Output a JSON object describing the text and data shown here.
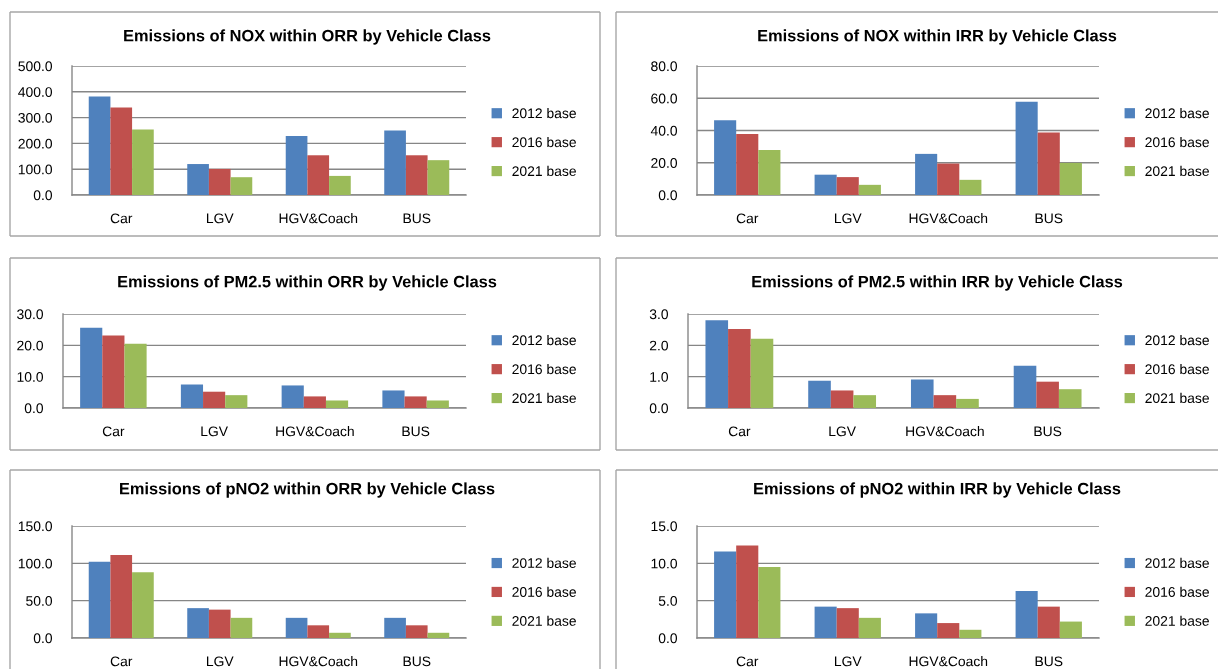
{
  "chart_data": [
    {
      "type": "bar",
      "title": "Emissions of NOX within ORR by Vehicle Class",
      "categories": [
        "Car",
        "LGV",
        "HGV&Coach",
        "BUS"
      ],
      "series": [
        {
          "name": "2012 base",
          "color": "#4f81bd",
          "values": [
            382,
            120,
            229,
            250
          ]
        },
        {
          "name": "2016 base",
          "color": "#c0504d",
          "values": [
            339,
            101,
            154,
            154
          ]
        },
        {
          "name": "2021 base",
          "color": "#9bbb59",
          "values": [
            254,
            69,
            74,
            135
          ]
        }
      ],
      "ylim": [
        0,
        500
      ],
      "yticks": [
        {
          "value": 0,
          "label": "0.0"
        },
        {
          "value": 100,
          "label": "100.0"
        },
        {
          "value": 200,
          "label": "200.0"
        },
        {
          "value": 300,
          "label": "300.0"
        },
        {
          "value": 400,
          "label": "400.0"
        },
        {
          "value": 500,
          "label": "500.0"
        }
      ],
      "grid": "y",
      "legend": "right"
    },
    {
      "type": "bar",
      "title": "Emissions of NOX within IRR by Vehicle Class",
      "categories": [
        "Car",
        "LGV",
        "HGV&Coach",
        "BUS"
      ],
      "series": [
        {
          "name": "2012 base",
          "color": "#4f81bd",
          "values": [
            46.3,
            12.6,
            25.5,
            57.8
          ]
        },
        {
          "name": "2016 base",
          "color": "#c0504d",
          "values": [
            37.9,
            11.1,
            19.5,
            38.7
          ]
        },
        {
          "name": "2021 base",
          "color": "#9bbb59",
          "values": [
            27.9,
            6.3,
            9.4,
            19.9
          ]
        }
      ],
      "ylim": [
        0,
        80
      ],
      "yticks": [
        {
          "value": 0,
          "label": "0.0"
        },
        {
          "value": 20,
          "label": "20.0"
        },
        {
          "value": 40,
          "label": "40.0"
        },
        {
          "value": 60,
          "label": "60.0"
        },
        {
          "value": 80,
          "label": "80.0"
        }
      ],
      "grid": "y",
      "legend": "right"
    },
    {
      "type": "bar",
      "title": "Emissions of PM2.5 within ORR by Vehicle Class",
      "categories": [
        "Car",
        "LGV",
        "HGV&Coach",
        "BUS"
      ],
      "series": [
        {
          "name": "2012 base",
          "color": "#4f81bd",
          "values": [
            25.6,
            7.5,
            7.2,
            5.6
          ]
        },
        {
          "name": "2016 base",
          "color": "#c0504d",
          "values": [
            23.1,
            5.2,
            3.7,
            3.7
          ]
        },
        {
          "name": "2021 base",
          "color": "#9bbb59",
          "values": [
            20.5,
            4.1,
            2.4,
            2.4
          ]
        }
      ],
      "ylim": [
        0,
        30
      ],
      "yticks": [
        {
          "value": 0,
          "label": "0.0"
        },
        {
          "value": 10,
          "label": "10.0"
        },
        {
          "value": 20,
          "label": "20.0"
        },
        {
          "value": 30,
          "label": "30.0"
        }
      ],
      "grid": "y",
      "legend": "right"
    },
    {
      "type": "bar",
      "title": "Emissions of PM2.5 within IRR by Vehicle Class",
      "categories": [
        "Car",
        "LGV",
        "HGV&Coach",
        "BUS"
      ],
      "series": [
        {
          "name": "2012 base",
          "color": "#4f81bd",
          "values": [
            2.8,
            0.87,
            0.91,
            1.35
          ]
        },
        {
          "name": "2016 base",
          "color": "#c0504d",
          "values": [
            2.52,
            0.56,
            0.41,
            0.84
          ]
        },
        {
          "name": "2021 base",
          "color": "#9bbb59",
          "values": [
            2.21,
            0.41,
            0.29,
            0.6
          ]
        }
      ],
      "ylim": [
        0,
        3
      ],
      "yticks": [
        {
          "value": 0,
          "label": "0.0"
        },
        {
          "value": 1,
          "label": "1.0"
        },
        {
          "value": 2,
          "label": "2.0"
        },
        {
          "value": 3,
          "label": "3.0"
        }
      ],
      "grid": "y",
      "legend": "right"
    },
    {
      "type": "bar",
      "title": "Emissions of pNO2 within ORR by Vehicle Class",
      "categories": [
        "Car",
        "LGV",
        "HGV&Coach",
        "BUS"
      ],
      "series": [
        {
          "name": "2012 base",
          "color": "#4f81bd",
          "values": [
            102,
            40,
            27,
            27
          ]
        },
        {
          "name": "2016 base",
          "color": "#c0504d",
          "values": [
            111,
            38,
            17,
            17
          ]
        },
        {
          "name": "2021 base",
          "color": "#9bbb59",
          "values": [
            88,
            27,
            7,
            7
          ]
        }
      ],
      "ylim": [
        0,
        150
      ],
      "yticks": [
        {
          "value": 0,
          "label": "0.0"
        },
        {
          "value": 50,
          "label": "50.0"
        },
        {
          "value": 100,
          "label": "100.0"
        },
        {
          "value": 150,
          "label": "150.0"
        }
      ],
      "grid": "y",
      "legend": "right"
    },
    {
      "type": "bar",
      "title": "Emissions of pNO2 within IRR by Vehicle Class",
      "categories": [
        "Car",
        "LGV",
        "HGV&Coach",
        "BUS"
      ],
      "series": [
        {
          "name": "2012 base",
          "color": "#4f81bd",
          "values": [
            11.6,
            4.2,
            3.3,
            6.3
          ]
        },
        {
          "name": "2016 base",
          "color": "#c0504d",
          "values": [
            12.4,
            4.0,
            2.0,
            4.2
          ]
        },
        {
          "name": "2021 base",
          "color": "#9bbb59",
          "values": [
            9.5,
            2.7,
            1.1,
            2.2
          ]
        }
      ],
      "ylim": [
        0,
        15
      ],
      "yticks": [
        {
          "value": 0,
          "label": "0.0"
        },
        {
          "value": 5,
          "label": "5.0"
        },
        {
          "value": 10,
          "label": "10.0"
        },
        {
          "value": 15,
          "label": "15.0"
        }
      ],
      "grid": "y",
      "legend": "right"
    }
  ]
}
